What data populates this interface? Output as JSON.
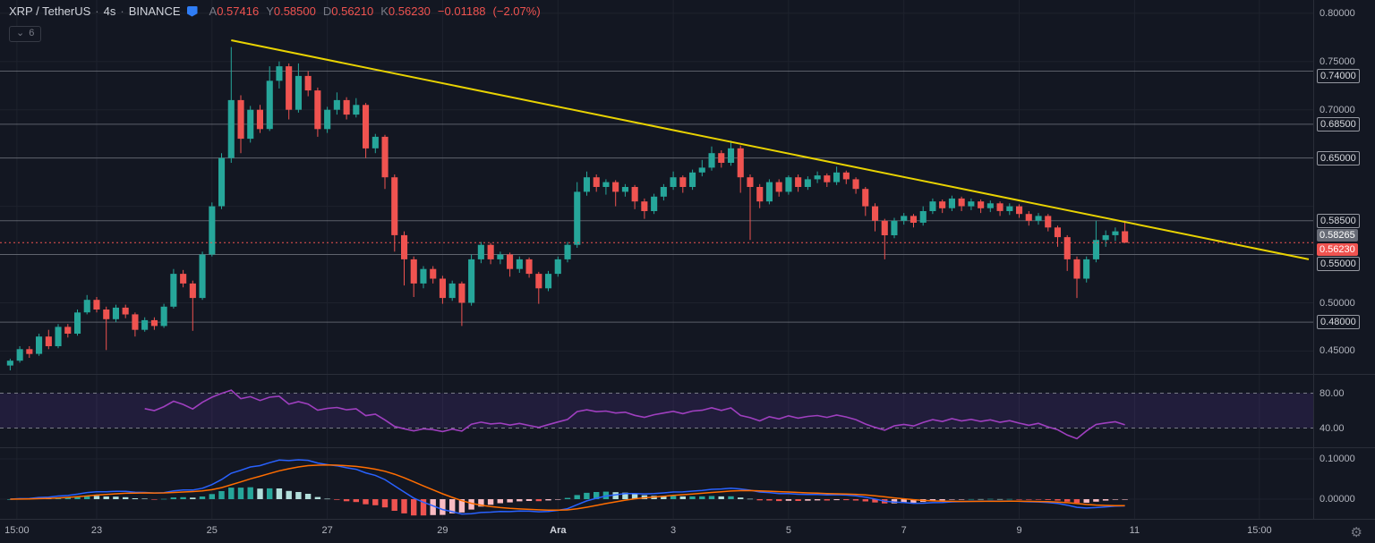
{
  "header": {
    "symbol": "XRP / TetherUS",
    "interval": "4s",
    "exchange": "BINANCE",
    "sep": "·",
    "ohlc": {
      "open_label": "A",
      "open": "0.57416",
      "high_label": "Y",
      "high": "0.58500",
      "low_label": "D",
      "low": "0.56210",
      "close_label": "K",
      "close": "0.56230",
      "change": "−0.01188",
      "change_pct": "(−2.07%)"
    },
    "collapse_count": "6"
  },
  "icons": {
    "chevron_down": "⌄",
    "gear": "⚙"
  },
  "colors": {
    "background": "#131722",
    "grid": "#1e222d",
    "separator": "#2a2e39",
    "axis_text": "#b2b5be",
    "muted_text": "#787b86",
    "title_text": "#d1d4dc",
    "up": "#26a69a",
    "down": "#ef5350",
    "trendline": "#e8d202",
    "hline": "#b2b5be",
    "rsi": "#9f3fbf",
    "rsi_band": "rgba(110,60,190,0.16)",
    "rsi_band_line": "#787b86",
    "macd_line": "#2962ff",
    "signal_line": "#ff6d00",
    "hist_up": "#26a69a",
    "hist_up_weak": "#b2dfdb",
    "hist_down": "#ef5350",
    "hist_down_weak": "#f8bbc2"
  },
  "price_axis": {
    "grid": [
      0.8,
      0.75,
      0.7,
      0.65,
      0.6,
      0.55,
      0.5,
      0.45
    ],
    "labels": [
      {
        "text": "0.80000",
        "price": 0.8,
        "style": "plain"
      },
      {
        "text": "0.75000",
        "price": 0.75,
        "style": "plain"
      },
      {
        "text": "0.74000",
        "price": 0.74,
        "style": "boxed"
      },
      {
        "text": "0.70000",
        "price": 0.7,
        "style": "plain"
      },
      {
        "text": "0.68500",
        "price": 0.685,
        "style": "boxed"
      },
      {
        "text": "0.65000",
        "price": 0.65,
        "style": "boxed"
      },
      {
        "text": "0.58500",
        "price": 0.585,
        "style": "boxed"
      },
      {
        "text": "0.58265",
        "price": 0.58265,
        "style": "filled-gray"
      },
      {
        "text": "0.56230",
        "price": 0.5623,
        "style": "filled-red"
      },
      {
        "text": "0.55000",
        "price": 0.55,
        "style": "boxed"
      },
      {
        "text": "0.50000",
        "price": 0.5,
        "style": "plain"
      },
      {
        "text": "0.48000",
        "price": 0.48,
        "style": "boxed"
      },
      {
        "text": "0.45000",
        "price": 0.45,
        "style": "plain"
      }
    ]
  },
  "rsi_axis": {
    "labels": [
      {
        "text": "80.00",
        "value": 80
      },
      {
        "text": "40.00",
        "value": 40
      }
    ]
  },
  "macd_axis": {
    "labels": [
      {
        "text": "0.10000"
      },
      {
        "text": "0.00000"
      }
    ]
  },
  "time_axis": {
    "ticks": [
      {
        "label": "15:00",
        "index": 0.7
      },
      {
        "label": "23",
        "index": 9
      },
      {
        "label": "25",
        "index": 21
      },
      {
        "label": "27",
        "index": 33
      },
      {
        "label": "29",
        "index": 45
      },
      {
        "label": "Ara",
        "index": 57,
        "strong": true
      },
      {
        "label": "3",
        "index": 69
      },
      {
        "label": "5",
        "index": 81
      },
      {
        "label": "7",
        "index": 93
      },
      {
        "label": "9",
        "index": 105
      },
      {
        "label": "11",
        "index": 117
      },
      {
        "label": "15:00",
        "index": 130
      }
    ]
  },
  "chart_data": {
    "type": "candlestick",
    "title": "XRP / TetherUS · 4h · BINANCE",
    "price_range": [
      0.43,
      0.81
    ],
    "last_price": 0.5623,
    "horizontal_lines": [
      0.74,
      0.685,
      0.65,
      0.585,
      0.55,
      0.48
    ],
    "trendline": {
      "start_index": 23,
      "start_price": 0.772,
      "end_price": 0.545
    },
    "indicators": {
      "rsi": {
        "period": 14,
        "bands": [
          80,
          40
        ]
      },
      "macd": {
        "fast": 12,
        "slow": 26,
        "signal": 9
      }
    },
    "candles": [
      [
        0.435,
        0.442,
        0.43,
        0.44
      ],
      [
        0.44,
        0.455,
        0.438,
        0.452
      ],
      [
        0.452,
        0.455,
        0.443,
        0.447
      ],
      [
        0.447,
        0.468,
        0.445,
        0.465
      ],
      [
        0.465,
        0.472,
        0.452,
        0.455
      ],
      [
        0.455,
        0.478,
        0.453,
        0.475
      ],
      [
        0.475,
        0.478,
        0.464,
        0.468
      ],
      [
        0.468,
        0.493,
        0.466,
        0.49
      ],
      [
        0.49,
        0.508,
        0.488,
        0.503
      ],
      [
        0.503,
        0.506,
        0.49,
        0.493
      ],
      [
        0.493,
        0.496,
        0.451,
        0.483
      ],
      [
        0.483,
        0.498,
        0.48,
        0.495
      ],
      [
        0.495,
        0.498,
        0.484,
        0.488
      ],
      [
        0.488,
        0.49,
        0.465,
        0.472
      ],
      [
        0.472,
        0.485,
        0.47,
        0.482
      ],
      [
        0.482,
        0.485,
        0.472,
        0.476
      ],
      [
        0.476,
        0.499,
        0.474,
        0.496
      ],
      [
        0.496,
        0.535,
        0.494,
        0.53
      ],
      [
        0.53,
        0.534,
        0.516,
        0.52
      ],
      [
        0.52,
        0.523,
        0.471,
        0.505
      ],
      [
        0.505,
        0.553,
        0.503,
        0.55
      ],
      [
        0.55,
        0.604,
        0.548,
        0.6
      ],
      [
        0.6,
        0.655,
        0.597,
        0.65
      ],
      [
        0.65,
        0.765,
        0.645,
        0.71
      ],
      [
        0.71,
        0.715,
        0.655,
        0.67
      ],
      [
        0.67,
        0.704,
        0.666,
        0.7
      ],
      [
        0.7,
        0.705,
        0.676,
        0.68
      ],
      [
        0.68,
        0.745,
        0.678,
        0.73
      ],
      [
        0.73,
        0.75,
        0.722,
        0.745
      ],
      [
        0.745,
        0.748,
        0.69,
        0.7
      ],
      [
        0.7,
        0.748,
        0.697,
        0.735
      ],
      [
        0.735,
        0.74,
        0.714,
        0.72
      ],
      [
        0.72,
        0.723,
        0.672,
        0.68
      ],
      [
        0.68,
        0.703,
        0.676,
        0.7
      ],
      [
        0.7,
        0.718,
        0.695,
        0.71
      ],
      [
        0.71,
        0.713,
        0.69,
        0.695
      ],
      [
        0.695,
        0.712,
        0.692,
        0.705
      ],
      [
        0.705,
        0.707,
        0.65,
        0.66
      ],
      [
        0.66,
        0.675,
        0.655,
        0.672
      ],
      [
        0.672,
        0.674,
        0.618,
        0.63
      ],
      [
        0.63,
        0.633,
        0.553,
        0.57
      ],
      [
        0.57,
        0.574,
        0.518,
        0.545
      ],
      [
        0.545,
        0.548,
        0.506,
        0.52
      ],
      [
        0.52,
        0.538,
        0.515,
        0.535
      ],
      [
        0.535,
        0.538,
        0.52,
        0.525
      ],
      [
        0.525,
        0.528,
        0.499,
        0.505
      ],
      [
        0.505,
        0.523,
        0.502,
        0.52
      ],
      [
        0.52,
        0.522,
        0.476,
        0.5
      ],
      [
        0.5,
        0.55,
        0.497,
        0.545
      ],
      [
        0.545,
        0.563,
        0.541,
        0.56
      ],
      [
        0.56,
        0.562,
        0.54,
        0.545
      ],
      [
        0.545,
        0.553,
        0.54,
        0.55
      ],
      [
        0.55,
        0.552,
        0.527,
        0.535
      ],
      [
        0.535,
        0.548,
        0.531,
        0.545
      ],
      [
        0.545,
        0.547,
        0.526,
        0.53
      ],
      [
        0.53,
        0.532,
        0.499,
        0.515
      ],
      [
        0.515,
        0.533,
        0.512,
        0.53
      ],
      [
        0.53,
        0.548,
        0.527,
        0.545
      ],
      [
        0.545,
        0.563,
        0.542,
        0.56
      ],
      [
        0.56,
        0.625,
        0.557,
        0.615
      ],
      [
        0.615,
        0.636,
        0.611,
        0.63
      ],
      [
        0.63,
        0.633,
        0.615,
        0.62
      ],
      [
        0.62,
        0.628,
        0.612,
        0.625
      ],
      [
        0.625,
        0.627,
        0.6,
        0.615
      ],
      [
        0.615,
        0.623,
        0.61,
        0.62
      ],
      [
        0.62,
        0.622,
        0.597,
        0.605
      ],
      [
        0.605,
        0.608,
        0.587,
        0.595
      ],
      [
        0.595,
        0.613,
        0.592,
        0.61
      ],
      [
        0.61,
        0.623,
        0.606,
        0.62
      ],
      [
        0.62,
        0.636,
        0.617,
        0.63
      ],
      [
        0.63,
        0.632,
        0.614,
        0.62
      ],
      [
        0.62,
        0.638,
        0.617,
        0.635
      ],
      [
        0.635,
        0.648,
        0.631,
        0.64
      ],
      [
        0.64,
        0.662,
        0.637,
        0.655
      ],
      [
        0.655,
        0.658,
        0.64,
        0.645
      ],
      [
        0.645,
        0.668,
        0.642,
        0.66
      ],
      [
        0.66,
        0.663,
        0.614,
        0.63
      ],
      [
        0.63,
        0.633,
        0.565,
        0.62
      ],
      [
        0.62,
        0.623,
        0.598,
        0.605
      ],
      [
        0.605,
        0.628,
        0.602,
        0.625
      ],
      [
        0.625,
        0.628,
        0.61,
        0.615
      ],
      [
        0.615,
        0.632,
        0.612,
        0.63
      ],
      [
        0.63,
        0.633,
        0.615,
        0.62
      ],
      [
        0.62,
        0.631,
        0.617,
        0.628
      ],
      [
        0.628,
        0.636,
        0.624,
        0.632
      ],
      [
        0.632,
        0.634,
        0.62,
        0.625
      ],
      [
        0.625,
        0.641,
        0.622,
        0.635
      ],
      [
        0.635,
        0.637,
        0.623,
        0.628
      ],
      [
        0.628,
        0.63,
        0.613,
        0.618
      ],
      [
        0.618,
        0.62,
        0.59,
        0.6
      ],
      [
        0.6,
        0.603,
        0.574,
        0.585
      ],
      [
        0.585,
        0.587,
        0.545,
        0.57
      ],
      [
        0.57,
        0.588,
        0.567,
        0.585
      ],
      [
        0.585,
        0.593,
        0.581,
        0.59
      ],
      [
        0.59,
        0.592,
        0.578,
        0.583
      ],
      [
        0.583,
        0.6,
        0.58,
        0.595
      ],
      [
        0.595,
        0.608,
        0.592,
        0.605
      ],
      [
        0.605,
        0.607,
        0.593,
        0.598
      ],
      [
        0.598,
        0.611,
        0.595,
        0.608
      ],
      [
        0.608,
        0.61,
        0.595,
        0.6
      ],
      [
        0.6,
        0.608,
        0.596,
        0.605
      ],
      [
        0.605,
        0.607,
        0.593,
        0.598
      ],
      [
        0.598,
        0.606,
        0.594,
        0.603
      ],
      [
        0.603,
        0.605,
        0.59,
        0.595
      ],
      [
        0.595,
        0.603,
        0.591,
        0.6
      ],
      [
        0.6,
        0.602,
        0.588,
        0.592
      ],
      [
        0.592,
        0.595,
        0.58,
        0.585
      ],
      [
        0.585,
        0.593,
        0.581,
        0.59
      ],
      [
        0.59,
        0.592,
        0.574,
        0.578
      ],
      [
        0.578,
        0.58,
        0.558,
        0.568
      ],
      [
        0.568,
        0.57,
        0.533,
        0.545
      ],
      [
        0.545,
        0.548,
        0.505,
        0.525
      ],
      [
        0.525,
        0.548,
        0.521,
        0.545
      ],
      [
        0.545,
        0.585,
        0.542,
        0.565
      ],
      [
        0.565,
        0.575,
        0.558,
        0.57
      ],
      [
        0.57,
        0.578,
        0.564,
        0.574
      ],
      [
        0.57416,
        0.585,
        0.5621,
        0.5623
      ]
    ]
  }
}
